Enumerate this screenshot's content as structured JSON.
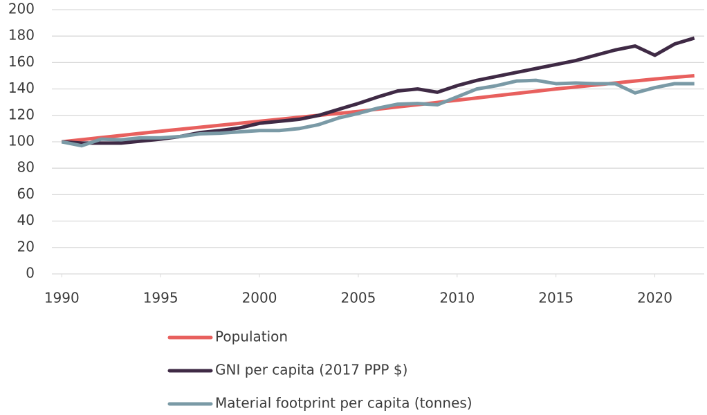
{
  "chart_data": {
    "type": "line",
    "x": [
      1990,
      1991,
      1992,
      1993,
      1994,
      1995,
      1996,
      1997,
      1998,
      1999,
      2000,
      2001,
      2002,
      2003,
      2004,
      2005,
      2006,
      2007,
      2008,
      2009,
      2010,
      2011,
      2012,
      2013,
      2014,
      2015,
      2016,
      2017,
      2018,
      2019,
      2020,
      2021,
      2022
    ],
    "series": [
      {
        "name": "Population",
        "color": "#e8605e",
        "values": [
          100,
          101.6,
          103.2,
          104.8,
          106.4,
          108,
          109.5,
          111,
          112.5,
          114,
          115.5,
          117,
          118.5,
          120,
          121.5,
          123,
          124.7,
          126.4,
          128.1,
          129.8,
          131.5,
          133.2,
          134.9,
          136.6,
          138.3,
          140,
          141.5,
          143,
          144.5,
          146,
          147.5,
          148.8,
          150
        ]
      },
      {
        "name": "GNI per capita (2017 PPP $)",
        "color": "#3f2a45",
        "values": [
          100,
          99,
          99,
          99,
          100.5,
          102,
          104,
          107,
          108.5,
          110.5,
          114,
          115.5,
          117,
          120,
          124.5,
          129,
          134,
          138.5,
          140,
          137.5,
          142.5,
          146.5,
          149.5,
          152.5,
          155.5,
          158.5,
          161.5,
          165.5,
          169.5,
          172.5,
          165.5,
          174,
          178.5
        ]
      },
      {
        "name": "Material footprint per capita (tonnes)",
        "color": "#7a9aa6",
        "values": [
          100,
          97,
          102,
          101.5,
          103,
          103,
          104,
          106,
          106.5,
          107.5,
          108.5,
          108.5,
          110,
          113,
          118,
          121.5,
          125.5,
          128.5,
          129,
          128,
          134,
          140,
          142.5,
          146,
          146.5,
          144,
          144.5,
          144,
          144,
          137,
          141,
          144,
          144
        ]
      }
    ],
    "xlim": [
      1989.5,
      2022.5
    ],
    "xticks": [
      1990,
      1995,
      2000,
      2005,
      2010,
      2015,
      2020
    ],
    "ylim": [
      0,
      200
    ],
    "yticks": [
      0,
      20,
      40,
      60,
      80,
      100,
      120,
      140,
      160,
      180,
      200
    ],
    "grid": true,
    "legend": "bottom"
  }
}
